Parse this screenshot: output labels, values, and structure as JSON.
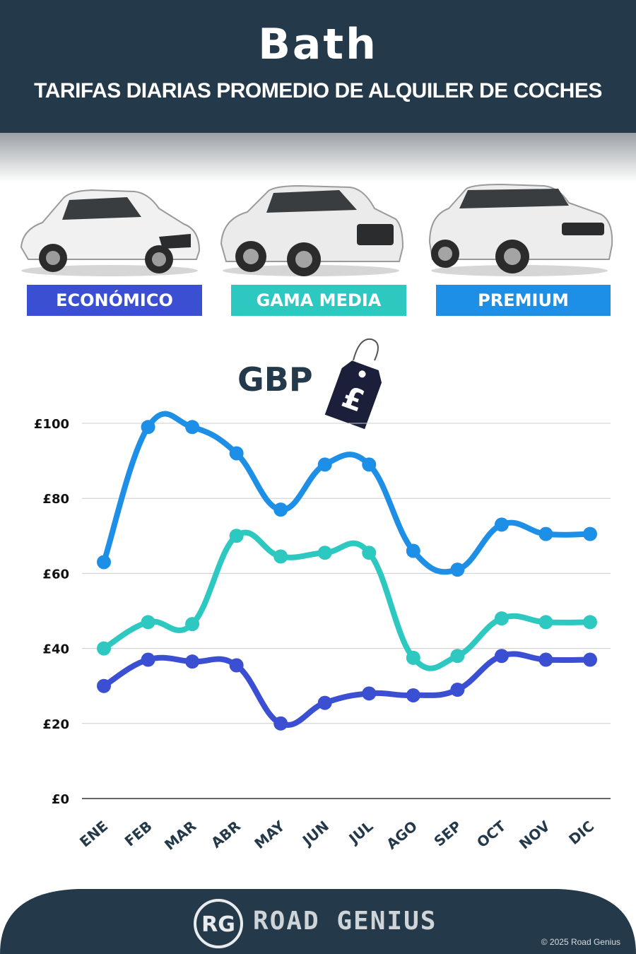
{
  "header": {
    "title": "Bath",
    "subtitle": "TARIFAS DIARIAS PROMEDIO DE ALQUILER DE COCHES"
  },
  "badges": [
    {
      "label": "ECONÓMICO",
      "color": "#3b4fd3"
    },
    {
      "label": "GAMA MEDIA",
      "color": "#2dc8c0"
    },
    {
      "label": "PREMIUM",
      "color": "#1e8fe6"
    }
  ],
  "currency": {
    "label": "GBP",
    "tag_symbol": "£"
  },
  "chart_data": {
    "type": "line",
    "title": "",
    "xlabel": "",
    "ylabel": "",
    "categories": [
      "ENE",
      "FEB",
      "MAR",
      "ABR",
      "MAY",
      "JUN",
      "JUL",
      "AGO",
      "SEP",
      "OCT",
      "NOV",
      "DIC"
    ],
    "ylim": [
      0,
      100
    ],
    "yticks": [
      0,
      20,
      40,
      60,
      80,
      100
    ],
    "ytick_labels": [
      "£0",
      "£20",
      "£40",
      "£60",
      "£80",
      "£100"
    ],
    "grid": true,
    "series": [
      {
        "name": "PREMIUM",
        "color": "#1e8fe6",
        "values": [
          63,
          99,
          99,
          92,
          77,
          89,
          89,
          66,
          61,
          73,
          70.5,
          70.5
        ]
      },
      {
        "name": "GAMA MEDIA",
        "color": "#2dc8c0",
        "values": [
          40,
          47,
          46.5,
          70,
          64.5,
          65.5,
          65.5,
          37.5,
          38,
          48,
          47,
          47
        ]
      },
      {
        "name": "ECONÓMICO",
        "color": "#3b4fd3",
        "values": [
          30,
          37,
          36.5,
          35.5,
          20,
          25.5,
          28,
          27.5,
          29,
          38,
          37,
          37
        ]
      }
    ]
  },
  "footer": {
    "logo_text": "RG",
    "brand": "ROAD GENIUS",
    "copyright": "© 2025 Road Genius",
    "background": "#243949"
  }
}
